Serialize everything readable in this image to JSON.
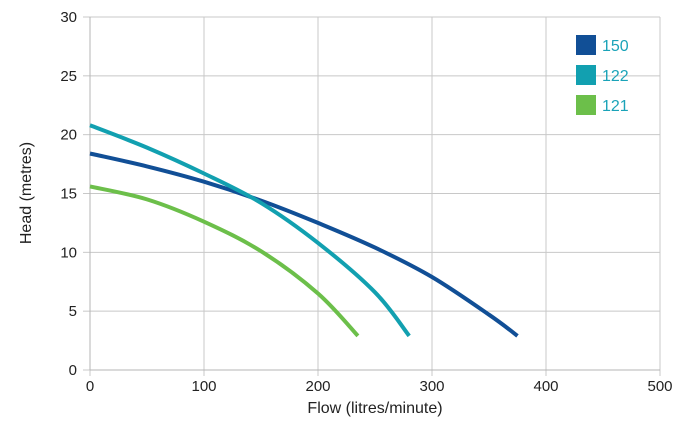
{
  "chart_data": {
    "type": "line",
    "title": "",
    "xlabel": "Flow (litres/minute)",
    "ylabel": "Head (metres)",
    "xlim": [
      0,
      500
    ],
    "ylim": [
      0,
      30
    ],
    "xticks": [
      "0",
      "100",
      "200",
      "300",
      "400",
      "500"
    ],
    "yticks": [
      "0",
      "5",
      "10",
      "15",
      "20",
      "25",
      "30"
    ],
    "grid": true,
    "legend_position": "top-right",
    "label_color": "#1aa3b8",
    "series": [
      {
        "name": "150",
        "color": "#114f96",
        "points": [
          [
            0,
            18.4
          ],
          [
            50,
            17.3
          ],
          [
            100,
            16.0
          ],
          [
            150,
            14.4
          ],
          [
            200,
            12.5
          ],
          [
            250,
            10.4
          ],
          [
            300,
            7.9
          ],
          [
            350,
            4.7
          ],
          [
            375,
            2.9
          ]
        ]
      },
      {
        "name": "122",
        "color": "#12a0b0",
        "points": [
          [
            0,
            20.8
          ],
          [
            50,
            18.9
          ],
          [
            100,
            16.7
          ],
          [
            150,
            14.2
          ],
          [
            200,
            10.8
          ],
          [
            250,
            6.6
          ],
          [
            280,
            2.9
          ]
        ]
      },
      {
        "name": "121",
        "color": "#6cbf4a",
        "points": [
          [
            0,
            15.6
          ],
          [
            50,
            14.5
          ],
          [
            100,
            12.6
          ],
          [
            150,
            10.1
          ],
          [
            200,
            6.5
          ],
          [
            235,
            2.9
          ]
        ]
      }
    ]
  }
}
